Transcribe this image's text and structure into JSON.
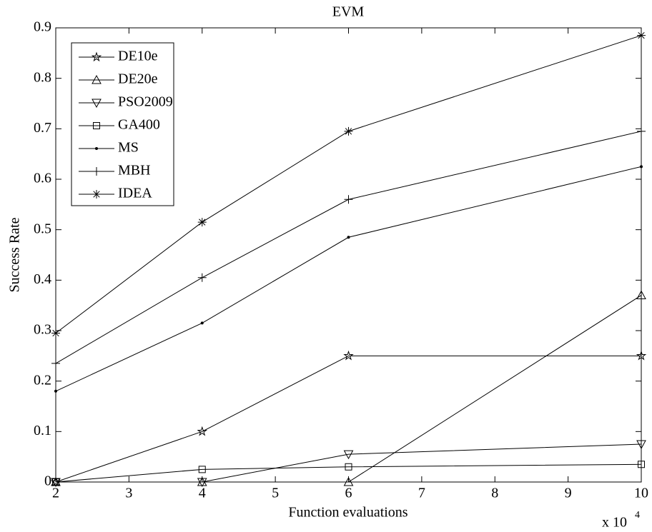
{
  "chart_data": {
    "type": "line",
    "title": "EVM",
    "x_label": "Function evaluations",
    "y_label": "Success Rate",
    "x_multiplier": {
      "text": "x 10",
      "exponent": "4"
    },
    "x": [
      2,
      4,
      6,
      10
    ],
    "xlim": [
      2,
      10
    ],
    "xticks": [
      2,
      3,
      4,
      5,
      6,
      7,
      8,
      9,
      10
    ],
    "ylim": [
      0,
      0.9
    ],
    "yticks": [
      0,
      0.1,
      0.2,
      0.3,
      0.4,
      0.5,
      0.6,
      0.7,
      0.8,
      0.9
    ],
    "legend": "upper left",
    "series": [
      {
        "name": "DE10e",
        "color": "#000000",
        "marker": "star",
        "values": [
          0,
          0.1,
          0.25,
          0.25
        ]
      },
      {
        "name": "DE20e",
        "color": "#000000",
        "marker": "triangle-up",
        "values": [
          0,
          0,
          0,
          0.37
        ]
      },
      {
        "name": "PSO2009",
        "color": "#000000",
        "marker": "triangle-down",
        "values": [
          0,
          0,
          0.055,
          0.075
        ]
      },
      {
        "name": "GA400",
        "color": "#000000",
        "marker": "square",
        "values": [
          0,
          0.025,
          0.03,
          0.035
        ]
      },
      {
        "name": "MS",
        "color": "#000000",
        "marker": "dot",
        "values": [
          0.18,
          0.315,
          0.485,
          0.625
        ]
      },
      {
        "name": "MBH",
        "color": "#000000",
        "marker": "plus",
        "values": [
          0.235,
          0.405,
          0.56,
          0.695
        ]
      },
      {
        "name": "IDEA",
        "color": "#000000",
        "marker": "asterisk",
        "values": [
          0.295,
          0.515,
          0.695,
          0.885
        ]
      }
    ]
  }
}
